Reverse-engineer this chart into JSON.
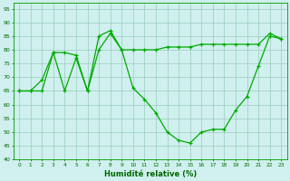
{
  "xlabel": "Humidité relative (%)",
  "background_color": "#cff0ee",
  "grid_color": "#99ccbb",
  "line_color": "#00aa00",
  "x": [
    0,
    1,
    2,
    3,
    4,
    5,
    6,
    7,
    8,
    9,
    10,
    11,
    12,
    13,
    14,
    15,
    16,
    17,
    18,
    19,
    20,
    21,
    22,
    23
  ],
  "line1": [
    65,
    65,
    65,
    79,
    79,
    78,
    65,
    85,
    87,
    80,
    80,
    80,
    80,
    81,
    81,
    81,
    82,
    82,
    82,
    82,
    82,
    82,
    86,
    84
  ],
  "line2": [
    65,
    65,
    69,
    79,
    65,
    77,
    65,
    80,
    86,
    80,
    66,
    62,
    57,
    50,
    47,
    46,
    50,
    51,
    51,
    58,
    63,
    74,
    85,
    84
  ],
  "ylim": [
    40,
    97
  ],
  "yticks": [
    40,
    45,
    50,
    55,
    60,
    65,
    70,
    75,
    80,
    85,
    90,
    95
  ],
  "xlim": [
    -0.5,
    23.5
  ]
}
